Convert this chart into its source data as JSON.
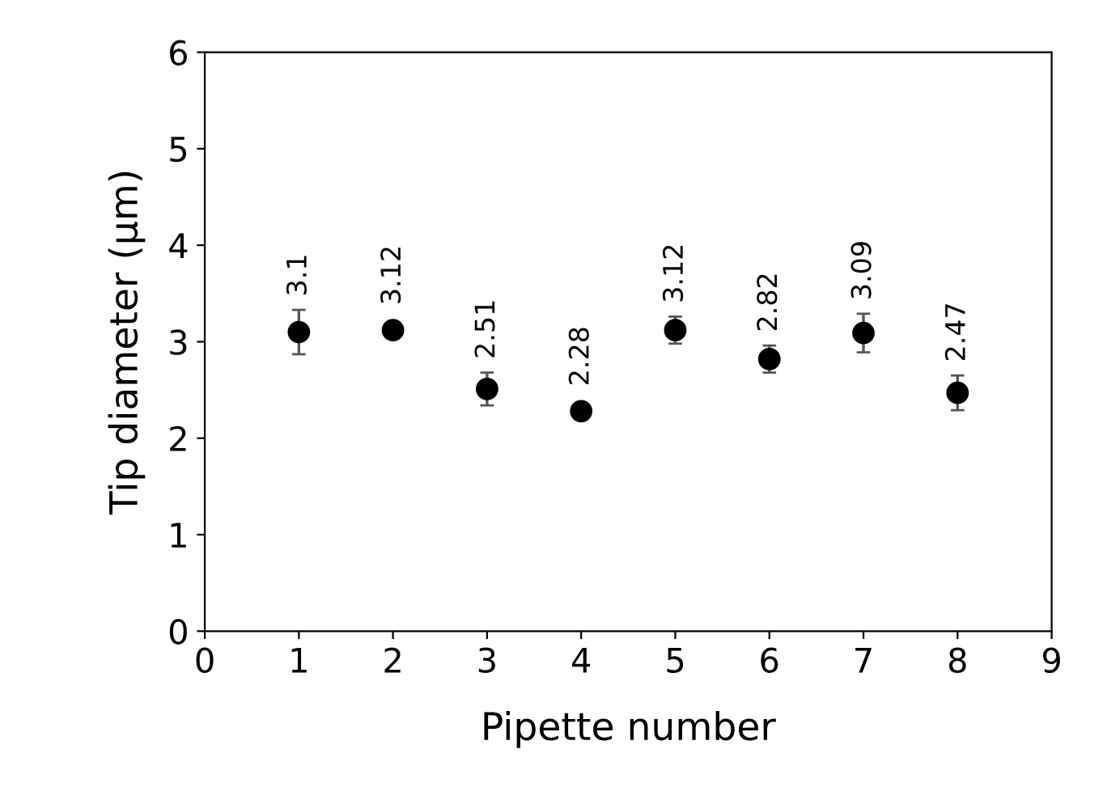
{
  "chart_data": {
    "type": "scatter",
    "xlabel": "Pipette number",
    "ylabel": "Tip diameter (µm)",
    "x": [
      1,
      2,
      3,
      4,
      5,
      6,
      7,
      8
    ],
    "values": [
      3.1,
      3.12,
      2.51,
      2.28,
      3.12,
      2.82,
      3.09,
      2.47
    ],
    "errors": [
      0.23,
      null,
      0.17,
      null,
      0.14,
      0.14,
      0.2,
      0.18
    ],
    "color": "#000000",
    "marker": "circle",
    "data_labels": true,
    "xlim": [
      0,
      9
    ],
    "xticks": [
      0,
      1,
      2,
      3,
      4,
      5,
      6,
      7,
      8,
      9
    ],
    "ylim": [
      0,
      6
    ],
    "yticks": [
      0,
      1,
      2,
      3,
      4,
      5,
      6
    ],
    "grid": false,
    "legend": false
  }
}
